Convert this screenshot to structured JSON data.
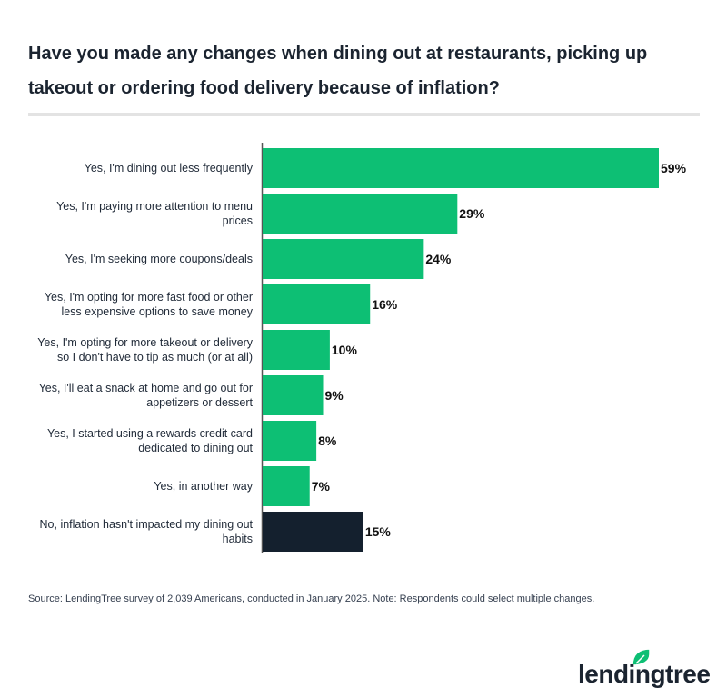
{
  "title": "Have you made any changes when dining out at restaurants, picking up takeout or ordering food delivery because of inflation?",
  "source": "Source: LendingTree survey of 2,039 Americans, conducted in January 2025. Note: Respondents could select multiple changes.",
  "logo": {
    "text": "lendingtree",
    "icon": "leaf-icon",
    "color": "#0dbf74"
  },
  "chart_data": {
    "type": "bar",
    "orientation": "horizontal",
    "categories": [
      [
        "Yes, I'm dining out less frequently"
      ],
      [
        "Yes, I'm paying more attention to menu",
        "prices"
      ],
      [
        "Yes, I'm seeking more coupons/deals"
      ],
      [
        "Yes, I'm opting for more fast food or other",
        "less expensive options to save money"
      ],
      [
        "Yes, I'm opting for more takeout or delivery",
        "so I don't have to tip as much (or at all)"
      ],
      [
        "Yes, I'll eat a snack at home and go out for",
        "appetizers or dessert"
      ],
      [
        "Yes, I started using a rewards credit card",
        "dedicated to dining out"
      ],
      [
        "Yes, in another way"
      ],
      [
        "No, inflation hasn't impacted my dining out",
        "habits"
      ]
    ],
    "values": [
      59,
      29,
      24,
      16,
      10,
      9,
      8,
      7,
      15
    ],
    "labels": [
      "59%",
      "29%",
      "24%",
      "16%",
      "10%",
      "9%",
      "8%",
      "7%",
      "15%"
    ],
    "colors": [
      "#0dbf74",
      "#0dbf74",
      "#0dbf74",
      "#0dbf74",
      "#0dbf74",
      "#0dbf74",
      "#0dbf74",
      "#0dbf74",
      "#14202e"
    ],
    "xlim": [
      0,
      59
    ],
    "grid": false,
    "legend": "none"
  }
}
